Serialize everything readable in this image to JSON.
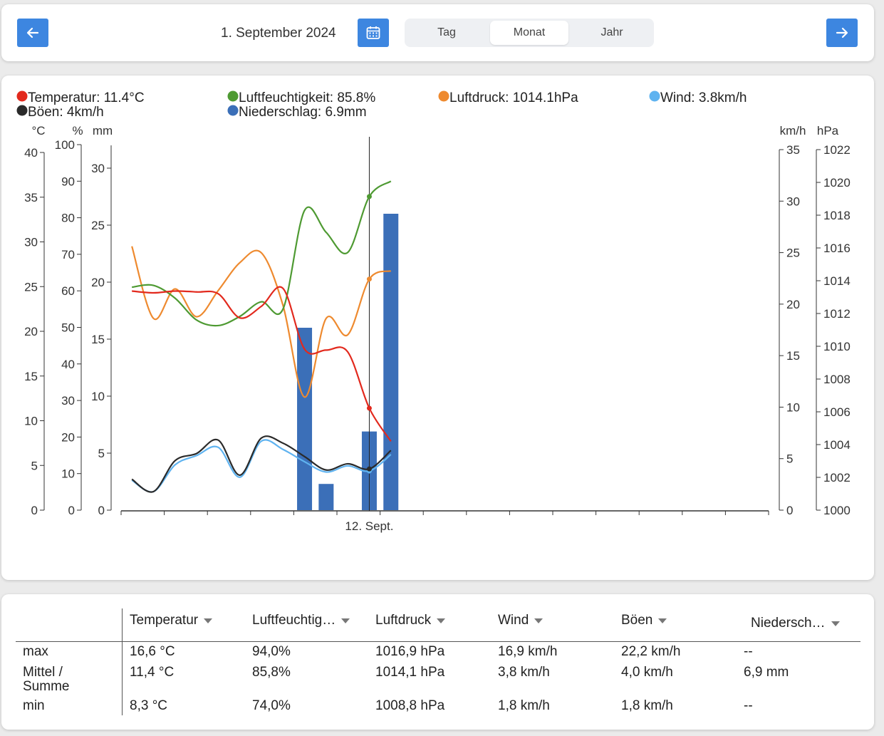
{
  "header": {
    "date_label": "1. September 2024",
    "tabs": [
      {
        "label": "Tag",
        "active": false
      },
      {
        "label": "Monat",
        "active": true
      },
      {
        "label": "Jahr",
        "active": false
      }
    ]
  },
  "colors": {
    "accent": "#3d86e0",
    "temperature": "#e2291d",
    "humidity": "#4e9a32",
    "pressure": "#ee8a2f",
    "wind": "#5fb3f0",
    "gusts": "#2a2a2a",
    "precipitation": "#3b6fb8"
  },
  "legend": [
    {
      "key": "temperature",
      "text": "Temperatur: 11.4°C"
    },
    {
      "key": "humidity",
      "text": "Luftfeuchtigkeit: 85.8%"
    },
    {
      "key": "pressure",
      "text": "Luftdruck: 1014.1hPa"
    },
    {
      "key": "wind",
      "text": "Wind: 3.8km/h"
    },
    {
      "key": "gusts",
      "text": "Böen: 4km/h"
    },
    {
      "key": "precipitation",
      "text": "Niederschlag: 6.9mm"
    }
  ],
  "chart_data": {
    "type": "line",
    "x_label": "12. Sept.",
    "x_label_day": 12,
    "days_in_month": 30,
    "cursor_day": 12,
    "axes": {
      "temp": {
        "unit": "°C",
        "min": 0,
        "max": 40,
        "ticks": [
          0,
          5,
          10,
          15,
          20,
          25,
          30,
          35,
          40
        ]
      },
      "humidity": {
        "unit": "%",
        "min": 0,
        "max": 100,
        "ticks": [
          0,
          10,
          20,
          30,
          40,
          50,
          60,
          70,
          80,
          90,
          100
        ]
      },
      "precip": {
        "unit": "mm",
        "min": 0,
        "max": 32,
        "ticks": [
          0,
          5,
          10,
          15,
          20,
          25,
          30
        ]
      },
      "wind": {
        "unit": "km/h",
        "min": 0,
        "max": 35,
        "ticks": [
          0,
          5,
          10,
          15,
          20,
          25,
          30,
          35
        ]
      },
      "pressure": {
        "unit": "hPa",
        "min": 1000,
        "max": 1022,
        "ticks": [
          1000,
          1002,
          1004,
          1006,
          1008,
          1010,
          1012,
          1014,
          1016,
          1018,
          1020,
          1022
        ]
      }
    },
    "series": [
      {
        "name": "Temperatur",
        "key": "temperature",
        "axis": "temp",
        "x": [
          1,
          2,
          3,
          4,
          5,
          6,
          7,
          8,
          9,
          10,
          11,
          12,
          13
        ],
        "values": [
          24.5,
          24.3,
          24.5,
          24.4,
          24.2,
          21.5,
          22.8,
          24.8,
          18,
          17.9,
          17.7,
          11.4,
          7.7
        ]
      },
      {
        "name": "Luftfeuchtigkeit",
        "key": "humidity",
        "axis": "humidity",
        "x": [
          1,
          2,
          3,
          4,
          5,
          6,
          7,
          8,
          9,
          10,
          11,
          12,
          13
        ],
        "values": [
          61,
          61.5,
          58,
          52,
          50.5,
          53,
          57,
          55,
          82,
          76,
          70.5,
          85.8,
          90
        ]
      },
      {
        "name": "Luftdruck",
        "key": "pressure",
        "axis": "pressure",
        "x": [
          1,
          2,
          3,
          4,
          5,
          6,
          7,
          8,
          9,
          10,
          11,
          12,
          13
        ],
        "values": [
          1016.1,
          1011.7,
          1013.5,
          1011.8,
          1013.4,
          1015.1,
          1015.7,
          1012.5,
          1006.9,
          1011.7,
          1010.7,
          1014.1,
          1014.6
        ]
      },
      {
        "name": "Wind",
        "key": "wind",
        "axis": "wind",
        "x": [
          1,
          2,
          3,
          4,
          5,
          6,
          7,
          8,
          9,
          10,
          11,
          12,
          13
        ],
        "values": [
          2.9,
          1.8,
          4.4,
          5.3,
          6.1,
          3.2,
          6.7,
          5.9,
          4.7,
          3.7,
          4.3,
          3.8,
          5.4
        ]
      },
      {
        "name": "Böen",
        "key": "gusts",
        "axis": "wind",
        "x": [
          1,
          2,
          3,
          4,
          5,
          6,
          7,
          8,
          9,
          10,
          11,
          12,
          13
        ],
        "values": [
          3.0,
          1.8,
          4.8,
          5.5,
          6.8,
          3.4,
          7.0,
          6.5,
          5.2,
          3.9,
          4.5,
          4.0,
          5.8
        ]
      },
      {
        "name": "Niederschlag",
        "key": "precipitation",
        "axis": "precip",
        "type": "bar",
        "x": [
          9,
          10,
          12,
          13
        ],
        "values": [
          16,
          2.3,
          6.9,
          26
        ]
      }
    ]
  },
  "table": {
    "headers": [
      "Temperatur",
      "Luftfeuchtig…",
      "Luftdruck",
      "Wind",
      "Böen",
      "Niedersch…"
    ],
    "rows": [
      {
        "label": "max",
        "values": [
          "16,6 °C",
          "94,0%",
          "1016,9 hPa",
          "16,9 km/h",
          "22,2 km/h",
          "--"
        ]
      },
      {
        "label_line1": "Mittel /",
        "label_line2": "Summe",
        "values": [
          "11,4 °C",
          "85,8%",
          "1014,1 hPa",
          "3,8 km/h",
          "4,0 km/h",
          "6,9 mm"
        ]
      },
      {
        "label": "min",
        "values": [
          "8,3 °C",
          "74,0%",
          "1008,8 hPa",
          "1,8 km/h",
          "1,8 km/h",
          "--"
        ]
      }
    ]
  }
}
